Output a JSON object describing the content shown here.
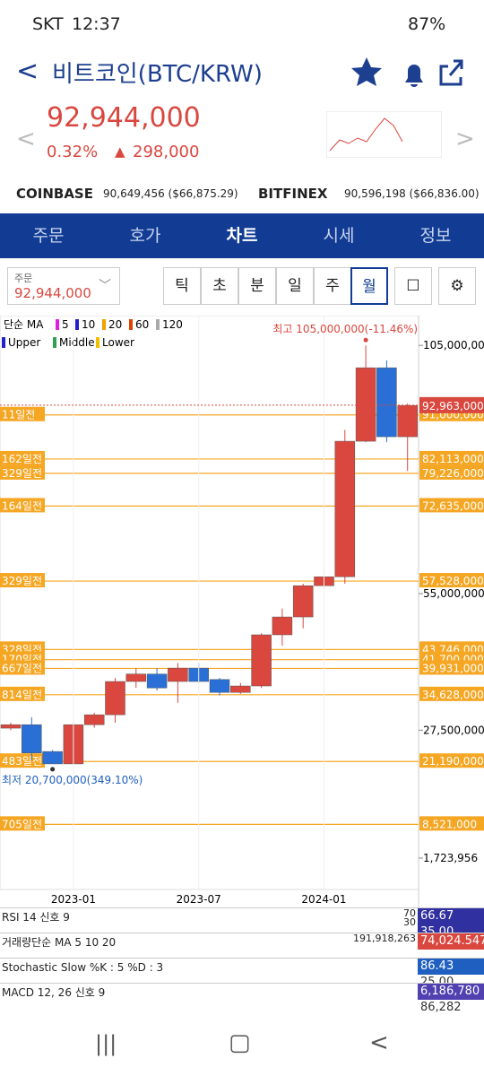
{
  "status": {
    "carrier": "SKT",
    "time": "12:37",
    "battery": "87%"
  },
  "header": {
    "title": "비트코인(BTC/KRW)",
    "price": "92,944,000",
    "change_pct": "0.32%",
    "change": "298,000"
  },
  "exchanges": [
    {
      "name": "COINBASE",
      "value": "90,649,456 ($66,875.29)"
    },
    {
      "name": "BITFINEX",
      "value": "90,596,198 ($66,836.00)"
    }
  ],
  "tabs": [
    "주문",
    "호가",
    "차트",
    "시세",
    "정보"
  ],
  "order_box": {
    "label": "주문",
    "value": "92,944,000"
  },
  "periods": [
    "틱",
    "초",
    "분",
    "일",
    "주",
    "월"
  ],
  "legend": {
    "ma_label": "단순 MA",
    "ma": [
      "5",
      "10",
      "20",
      "60",
      "120"
    ],
    "bands": [
      "Upper",
      "Middle",
      "Lower"
    ]
  },
  "chart_data": {
    "type": "candlestick",
    "categories": [
      null,
      null,
      null,
      "2023-01",
      null,
      null,
      null,
      null,
      null,
      "2023-07",
      null,
      null,
      null,
      null,
      null,
      "2024-01",
      null,
      null,
      null,
      null
    ],
    "candles": [
      {
        "open": 27900000,
        "high": 29000000,
        "low": 27500000,
        "close": 28600000
      },
      {
        "open": 28600000,
        "high": 30100000,
        "low": 21400000,
        "close": 22900000
      },
      {
        "open": 23200000,
        "high": 23500000,
        "low": 20700000,
        "close": 20700000
      },
      {
        "open": 20700000,
        "high": 29000000,
        "low": 20700000,
        "close": 28600000
      },
      {
        "open": 28600000,
        "high": 31000000,
        "low": 28000000,
        "close": 30600000
      },
      {
        "open": 30600000,
        "high": 38000000,
        "low": 29000000,
        "close": 37300000
      },
      {
        "open": 37300000,
        "high": 40000000,
        "low": 36000000,
        "close": 38800000
      },
      {
        "open": 38800000,
        "high": 40000000,
        "low": 35500000,
        "close": 36000000
      },
      {
        "open": 37300000,
        "high": 41000000,
        "low": 33000000,
        "close": 40000000
      },
      {
        "open": 40000000,
        "high": 41000000,
        "low": 37000000,
        "close": 37300000
      },
      {
        "open": 37700000,
        "high": 38000000,
        "low": 34500000,
        "close": 35100000
      },
      {
        "open": 35100000,
        "high": 37000000,
        "low": 34800000,
        "close": 36400000
      },
      {
        "open": 36400000,
        "high": 47000000,
        "low": 36000000,
        "close": 46700000
      },
      {
        "open": 46700000,
        "high": 52000000,
        "low": 44500000,
        "close": 50300000
      },
      {
        "open": 50300000,
        "high": 57000000,
        "low": 48000000,
        "close": 56600000
      },
      {
        "open": 56600000,
        "high": 61000000,
        "low": 55000000,
        "close": 58400000
      },
      {
        "open": 58400000,
        "high": 88000000,
        "low": 57000000,
        "close": 85700000
      },
      {
        "open": 85700000,
        "high": 105000000,
        "low": 85500000,
        "close": 100500000
      },
      {
        "open": 100500000,
        "high": 102000000,
        "low": 85500000,
        "close": 86600000
      },
      {
        "open": 86600000,
        "high": 93300000,
        "low": 79700000,
        "close": 92900000
      }
    ],
    "up_color": "#d9473f",
    "down_color": "#2a6fd6",
    "ylim": [
      -4600000,
      111000000
    ],
    "yticks": [
      {
        "value": 105000000,
        "label": "105,000,000"
      },
      {
        "value": 55000000,
        "label": "55,000,000"
      },
      {
        "value": 27500000,
        "label": "27,500,000"
      },
      {
        "value": 1723956,
        "label": "1,723,956"
      }
    ],
    "levels": [
      {
        "value": 91000000,
        "label": "91,000,000",
        "days": "11일전"
      },
      {
        "value": 82113000,
        "label": "82,113,000",
        "days": "162일전"
      },
      {
        "value": 79226000,
        "label": "79,226,000",
        "days": "329일전"
      },
      {
        "value": 72635000,
        "label": "72,635,000",
        "days": "164일전"
      },
      {
        "value": 57528000,
        "label": "57,528,000",
        "days": "329일전"
      },
      {
        "value": 43746000,
        "label": "43,746,000",
        "days": "328일전"
      },
      {
        "value": 41700000,
        "label": "41,700,000",
        "days": "170일전"
      },
      {
        "value": 39931000,
        "label": "39,931,000",
        "days": "667일전"
      },
      {
        "value": 34628000,
        "label": "34,628,000",
        "days": "814일전"
      },
      {
        "value": 21190000,
        "label": "21,190,000",
        "days": "483일전"
      },
      {
        "value": 8521000,
        "label": "8,521,000",
        "days": "705일전"
      }
    ],
    "current": {
      "value": 92963000,
      "label": "92,963,000"
    },
    "high_annotation": "최고 105,000,000(-11.46%)",
    "low_annotation": "최저 20,700,000(349.10%)"
  },
  "indicators": [
    {
      "label": "RSI 14 신호 9",
      "levels": [
        "70",
        "30"
      ],
      "values": [
        "66.67",
        "35.00"
      ]
    },
    {
      "label": "거래량단순 MA 5 10 20",
      "levels": [
        "191,918,263"
      ],
      "values": [
        "74,024.547"
      ]
    },
    {
      "label": "Stochastic Slow %K : 5 %D : 3",
      "levels": [],
      "values": [
        "86.43",
        "25.00"
      ]
    },
    {
      "label": "MACD 12, 26 신호 9",
      "levels": [],
      "values": [
        "6,186,780",
        "86,282"
      ]
    }
  ]
}
